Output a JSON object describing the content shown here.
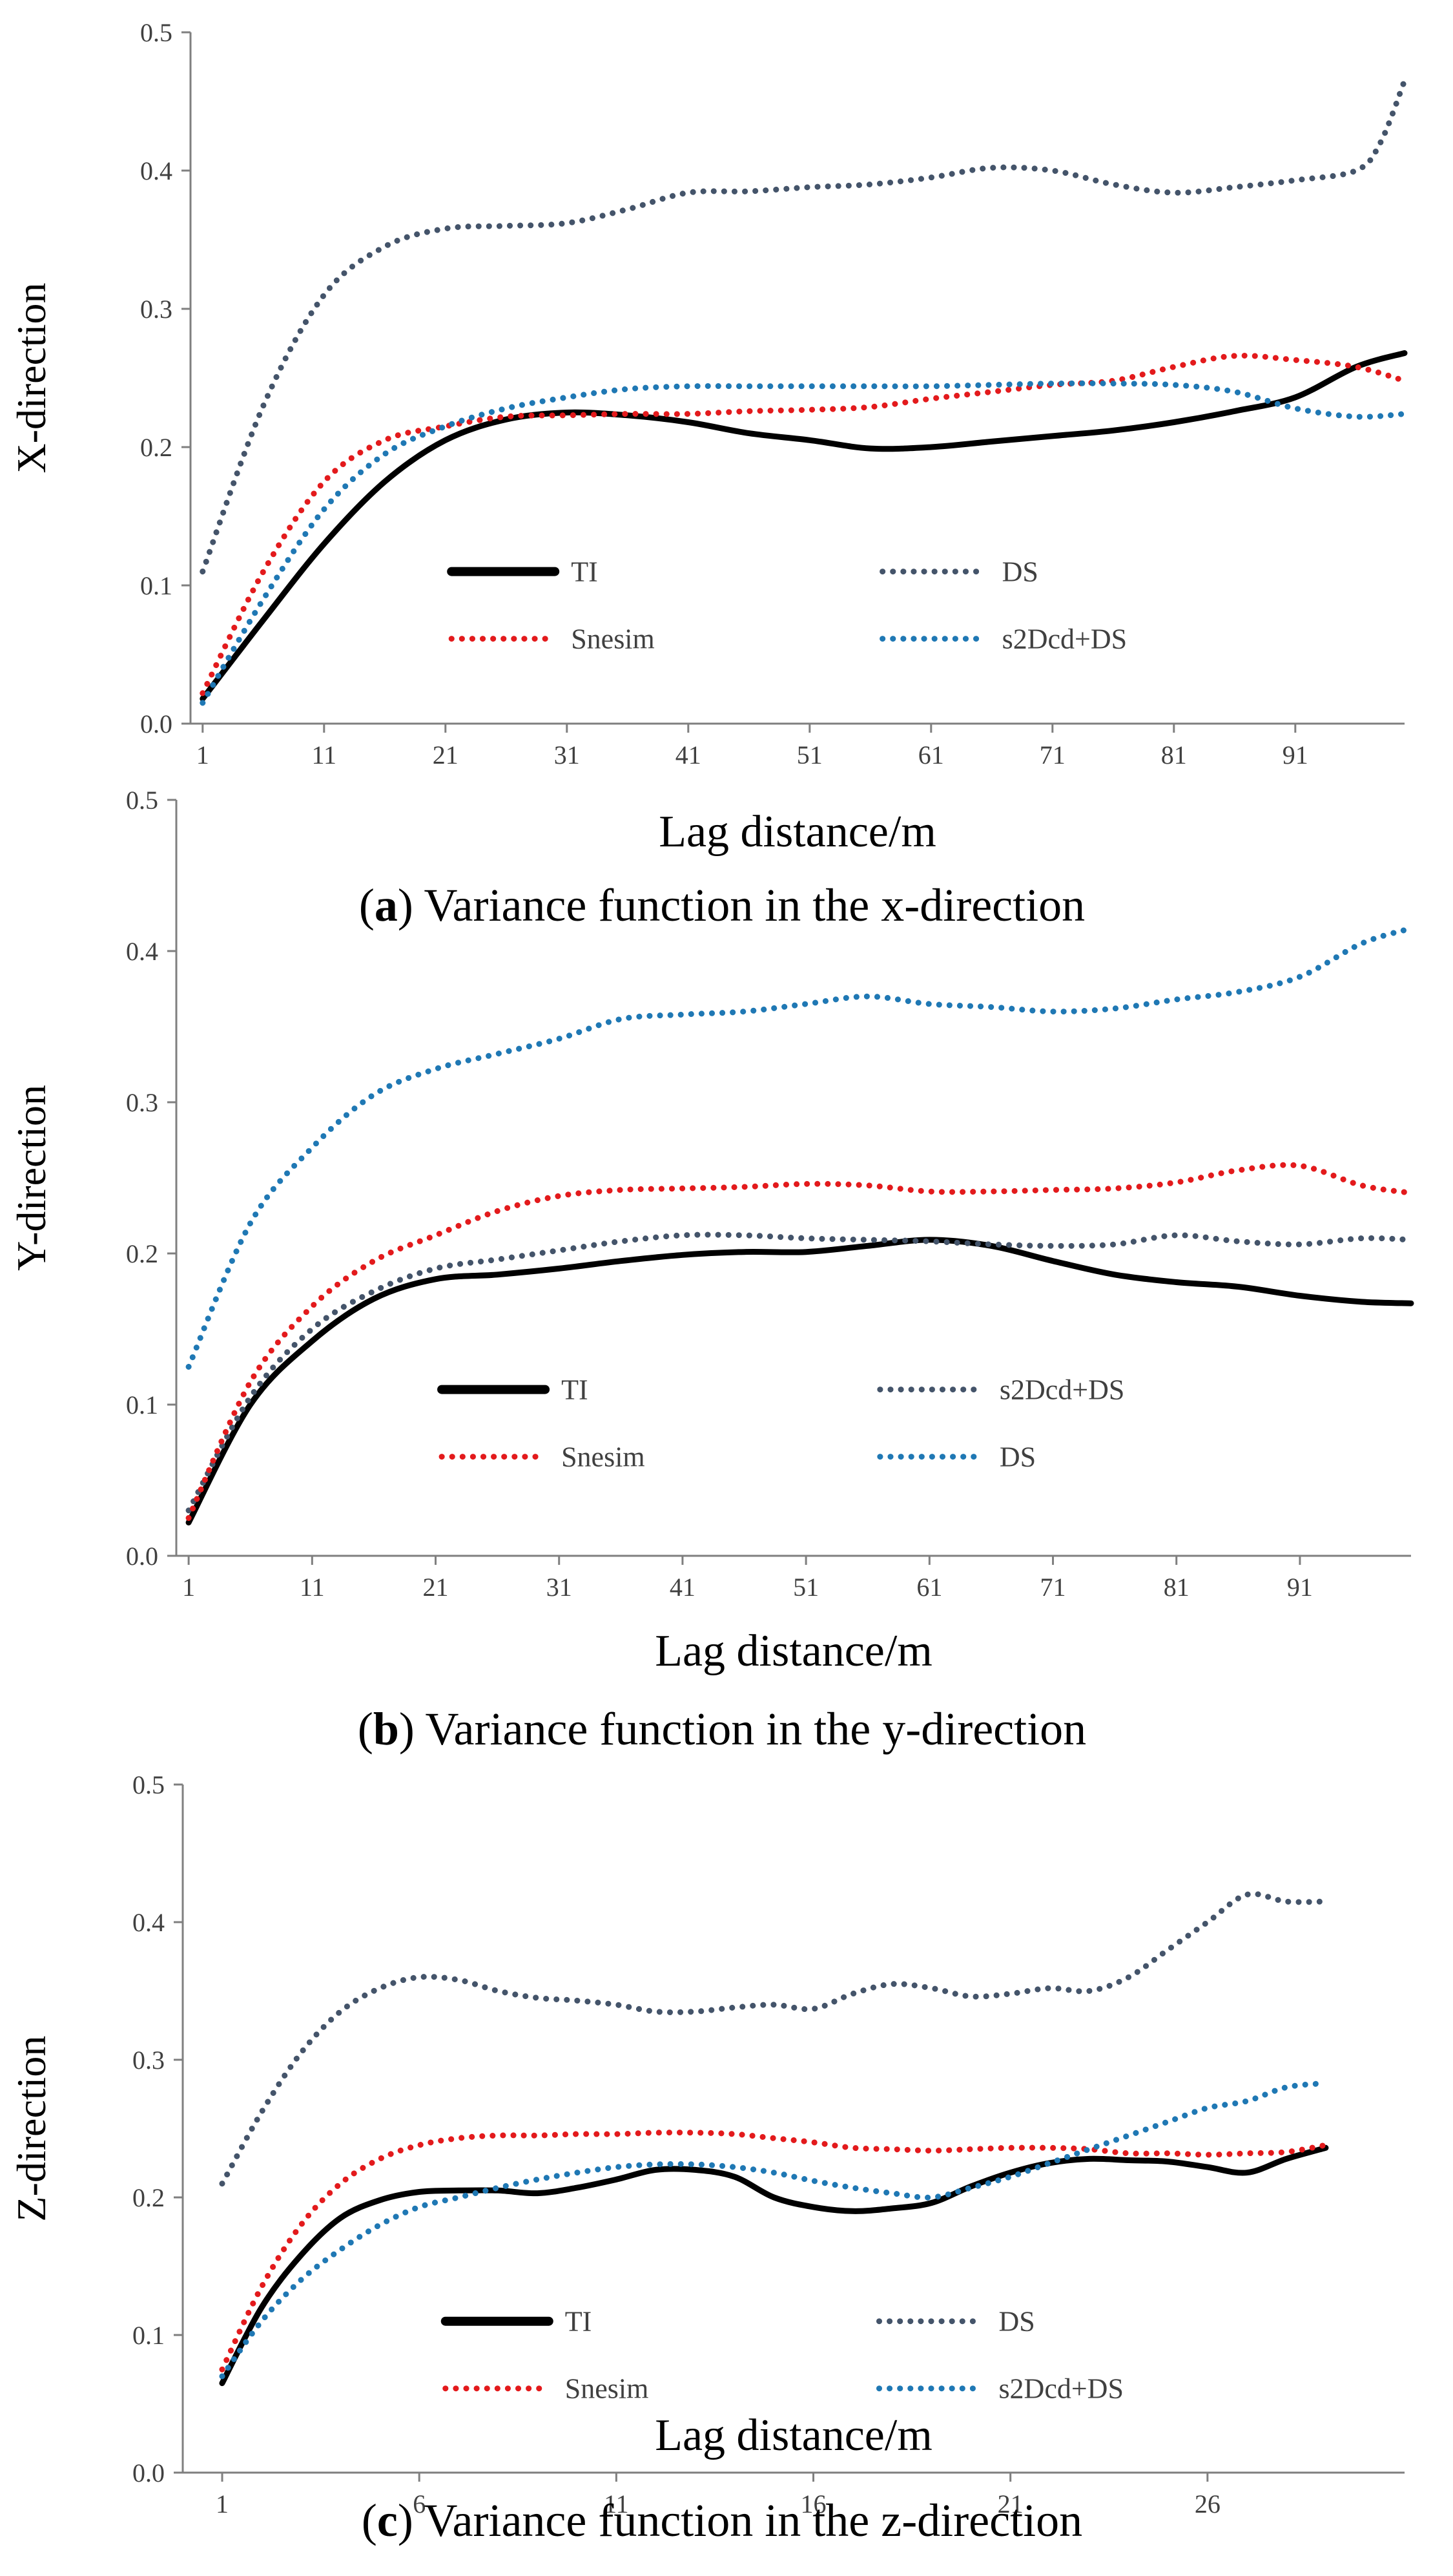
{
  "chart_data": [
    {
      "type": "line",
      "panel": "a",
      "caption": {
        "letter": "a",
        "text": "Variance function in the x-direction"
      },
      "xlabel": "Lag distance/m",
      "ylabel": "X-direction",
      "xlim": [
        0,
        100
      ],
      "ylim": [
        0,
        0.5
      ],
      "xticks": [
        1,
        11,
        21,
        31,
        41,
        51,
        61,
        71,
        81,
        91
      ],
      "yticks": [
        "0.0",
        "0.1",
        "0.2",
        "0.3",
        "0.4",
        "0.5"
      ],
      "legend_rows": [
        [
          "TI",
          "DS"
        ],
        [
          "Snesim",
          "s2Dcd+DS"
        ]
      ],
      "series": [
        {
          "name": "TI",
          "color": "#000000",
          "style": "solid",
          "x": [
            1,
            6,
            11,
            16,
            21,
            26,
            31,
            36,
            41,
            46,
            51,
            56,
            61,
            66,
            71,
            76,
            81,
            86,
            91,
            96,
            100
          ],
          "y": [
            0.018,
            0.075,
            0.13,
            0.175,
            0.205,
            0.22,
            0.225,
            0.223,
            0.218,
            0.21,
            0.205,
            0.199,
            0.2,
            0.204,
            0.208,
            0.212,
            0.218,
            0.226,
            0.236,
            0.258,
            0.268
          ]
        },
        {
          "name": "DS",
          "color": "#44546A",
          "style": "dotted",
          "x": [
            1,
            6,
            11,
            16,
            21,
            26,
            31,
            36,
            41,
            46,
            51,
            56,
            61,
            66,
            71,
            76,
            81,
            86,
            91,
            96,
            98,
            100
          ],
          "y": [
            0.11,
            0.23,
            0.31,
            0.345,
            0.358,
            0.36,
            0.362,
            0.372,
            0.384,
            0.385,
            0.388,
            0.39,
            0.395,
            0.402,
            0.4,
            0.39,
            0.384,
            0.388,
            0.393,
            0.4,
            0.42,
            0.465
          ]
        },
        {
          "name": "Snesim",
          "color": "#E31A1C",
          "style": "dotted",
          "x": [
            1,
            6,
            11,
            16,
            21,
            26,
            31,
            36,
            41,
            46,
            51,
            56,
            61,
            66,
            71,
            76,
            81,
            86,
            91,
            96,
            100
          ],
          "y": [
            0.022,
            0.11,
            0.175,
            0.205,
            0.215,
            0.222,
            0.223,
            0.224,
            0.224,
            0.226,
            0.227,
            0.229,
            0.235,
            0.24,
            0.245,
            0.248,
            0.258,
            0.266,
            0.263,
            0.258,
            0.248
          ]
        },
        {
          "name": "s2Dcd+DS",
          "color": "#1F78B4",
          "style": "dotted",
          "x": [
            1,
            6,
            11,
            16,
            21,
            26,
            31,
            36,
            41,
            46,
            51,
            56,
            61,
            66,
            71,
            76,
            81,
            86,
            91,
            96,
            100
          ],
          "y": [
            0.015,
            0.09,
            0.155,
            0.195,
            0.215,
            0.228,
            0.236,
            0.242,
            0.244,
            0.244,
            0.244,
            0.244,
            0.244,
            0.245,
            0.246,
            0.246,
            0.245,
            0.24,
            0.228,
            0.222,
            0.224
          ]
        }
      ]
    },
    {
      "type": "line",
      "panel": "b",
      "caption": {
        "letter": "b",
        "text": "Variance function in the y-direction"
      },
      "xlabel": "Lag distance/m",
      "ylabel": "Y-direction",
      "xlim": [
        0,
        100
      ],
      "ylim": [
        0,
        0.5
      ],
      "xticks": [
        1,
        11,
        21,
        31,
        41,
        51,
        61,
        71,
        81,
        91
      ],
      "yticks": [
        "0.0",
        "0.1",
        "0.2",
        "0.3",
        "0.4",
        "0.5"
      ],
      "legend_rows": [
        [
          "TI",
          "s2Dcd+DS"
        ],
        [
          "Snesim",
          "DS"
        ]
      ],
      "series": [
        {
          "name": "TI",
          "color": "#000000",
          "style": "solid",
          "x": [
            1,
            6,
            11,
            16,
            21,
            26,
            31,
            36,
            41,
            46,
            51,
            56,
            61,
            66,
            71,
            76,
            81,
            86,
            91,
            96,
            100
          ],
          "y": [
            0.022,
            0.1,
            0.142,
            0.17,
            0.183,
            0.186,
            0.19,
            0.195,
            0.199,
            0.201,
            0.201,
            0.205,
            0.209,
            0.205,
            0.195,
            0.186,
            0.181,
            0.178,
            0.172,
            0.168,
            0.167
          ]
        },
        {
          "name": "s2Dcd+DS",
          "color": "#44546A",
          "style": "dotted",
          "x": [
            1,
            6,
            11,
            16,
            21,
            26,
            31,
            36,
            41,
            46,
            51,
            56,
            61,
            66,
            71,
            76,
            81,
            86,
            91,
            96,
            100
          ],
          "y": [
            0.03,
            0.105,
            0.15,
            0.175,
            0.19,
            0.196,
            0.202,
            0.208,
            0.212,
            0.212,
            0.21,
            0.209,
            0.208,
            0.206,
            0.205,
            0.206,
            0.212,
            0.208,
            0.206,
            0.21,
            0.209
          ]
        },
        {
          "name": "Snesim",
          "color": "#E31A1C",
          "style": "dotted",
          "x": [
            1,
            6,
            11,
            16,
            21,
            26,
            31,
            36,
            41,
            46,
            51,
            56,
            61,
            66,
            71,
            76,
            81,
            86,
            91,
            96,
            100
          ],
          "y": [
            0.025,
            0.115,
            0.165,
            0.195,
            0.212,
            0.228,
            0.238,
            0.242,
            0.243,
            0.244,
            0.246,
            0.245,
            0.241,
            0.241,
            0.242,
            0.243,
            0.247,
            0.255,
            0.258,
            0.245,
            0.24
          ]
        },
        {
          "name": "DS",
          "color": "#1F78B4",
          "style": "dotted",
          "x": [
            1,
            6,
            11,
            16,
            21,
            26,
            31,
            36,
            41,
            46,
            51,
            56,
            61,
            66,
            71,
            76,
            81,
            86,
            91,
            96,
            100
          ],
          "y": [
            0.125,
            0.22,
            0.27,
            0.305,
            0.322,
            0.332,
            0.342,
            0.355,
            0.358,
            0.36,
            0.365,
            0.37,
            0.365,
            0.363,
            0.36,
            0.362,
            0.368,
            0.373,
            0.383,
            0.405,
            0.415
          ]
        }
      ]
    },
    {
      "type": "line",
      "panel": "c",
      "caption": {
        "letter": "c",
        "text": "Variance function in the z-direction"
      },
      "xlabel": "Lag distance/m",
      "ylabel": "Z-direction",
      "xlim": [
        0,
        31
      ],
      "ylim": [
        0,
        0.5
      ],
      "xticks": [
        1,
        6,
        11,
        16,
        21,
        26
      ],
      "yticks": [
        "0.0",
        "0.1",
        "0.2",
        "0.3",
        "0.4",
        "0.5"
      ],
      "legend_rows": [
        [
          "TI",
          "DS"
        ],
        [
          "Snesim",
          "s2Dcd+DS"
        ]
      ],
      "series": [
        {
          "name": "TI",
          "color": "#000000",
          "style": "solid",
          "x": [
            1,
            2,
            3,
            4,
            5,
            6,
            7,
            8,
            9,
            10,
            11,
            12,
            13,
            14,
            15,
            16,
            17,
            18,
            19,
            20,
            21,
            22,
            23,
            24,
            25,
            26,
            27,
            28,
            29
          ],
          "y": [
            0.065,
            0.12,
            0.158,
            0.185,
            0.198,
            0.204,
            0.205,
            0.205,
            0.203,
            0.207,
            0.213,
            0.22,
            0.22,
            0.215,
            0.2,
            0.193,
            0.19,
            0.192,
            0.196,
            0.208,
            0.218,
            0.225,
            0.228,
            0.227,
            0.226,
            0.222,
            0.218,
            0.228,
            0.236
          ]
        },
        {
          "name": "DS",
          "color": "#44546A",
          "style": "dotted",
          "x": [
            1,
            2,
            3,
            4,
            5,
            6,
            7,
            8,
            9,
            10,
            11,
            12,
            13,
            14,
            15,
            16,
            17,
            18,
            19,
            20,
            21,
            22,
            23,
            24,
            25,
            26,
            27,
            28,
            29
          ],
          "y": [
            0.21,
            0.262,
            0.305,
            0.335,
            0.352,
            0.36,
            0.358,
            0.35,
            0.345,
            0.343,
            0.34,
            0.335,
            0.335,
            0.338,
            0.34,
            0.337,
            0.348,
            0.355,
            0.352,
            0.346,
            0.348,
            0.352,
            0.35,
            0.36,
            0.38,
            0.4,
            0.42,
            0.415,
            0.415
          ]
        },
        {
          "name": "Snesim",
          "color": "#E31A1C",
          "style": "dotted",
          "x": [
            1,
            2,
            3,
            4,
            5,
            6,
            7,
            8,
            9,
            10,
            11,
            12,
            13,
            14,
            15,
            16,
            17,
            18,
            19,
            20,
            21,
            22,
            23,
            24,
            25,
            26,
            27,
            28,
            29
          ],
          "y": [
            0.075,
            0.135,
            0.18,
            0.21,
            0.228,
            0.238,
            0.243,
            0.245,
            0.245,
            0.246,
            0.246,
            0.247,
            0.247,
            0.246,
            0.243,
            0.24,
            0.236,
            0.235,
            0.234,
            0.235,
            0.236,
            0.236,
            0.235,
            0.232,
            0.232,
            0.231,
            0.232,
            0.233,
            0.238
          ]
        },
        {
          "name": "s2Dcd+DS",
          "color": "#1F78B4",
          "style": "dotted",
          "x": [
            1,
            2,
            3,
            4,
            5,
            6,
            7,
            8,
            9,
            10,
            11,
            12,
            13,
            14,
            15,
            16,
            17,
            18,
            19,
            20,
            21,
            22,
            23,
            24,
            25,
            26,
            27,
            28,
            29
          ],
          "y": [
            0.07,
            0.11,
            0.14,
            0.162,
            0.18,
            0.193,
            0.2,
            0.207,
            0.213,
            0.218,
            0.222,
            0.224,
            0.224,
            0.222,
            0.218,
            0.212,
            0.207,
            0.203,
            0.2,
            0.207,
            0.215,
            0.225,
            0.235,
            0.245,
            0.255,
            0.265,
            0.27,
            0.28,
            0.283
          ]
        }
      ]
    }
  ]
}
